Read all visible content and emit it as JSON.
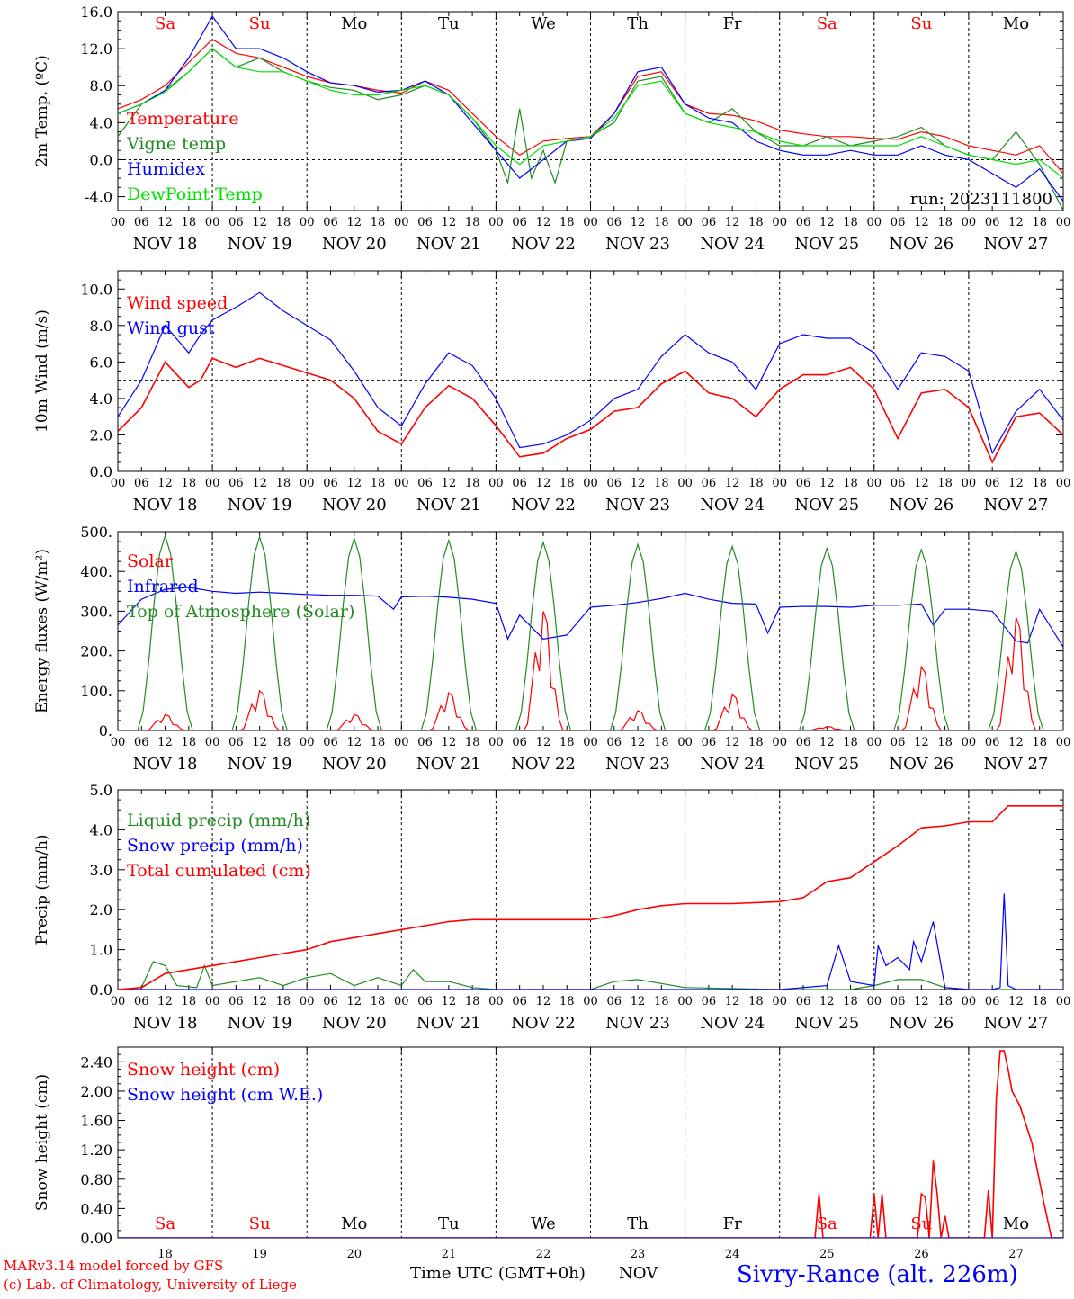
{
  "footer": {
    "model": "MARv3.14 model forced by GFS",
    "copyright": "(c) Lab. of Climatology, University of Liege",
    "time_label": "Time UTC (GMT+0h)",
    "month_label": "NOV",
    "station": "Sivry-Rance (alt. 226m)"
  },
  "colors": {
    "red": "#ff0000",
    "green": "#228b22",
    "blue": "#0000ff",
    "light_green": "#00e000",
    "black": "#000000",
    "gray": "#555555"
  },
  "days": {
    "names": [
      "Sa",
      "Su",
      "Mo",
      "Tu",
      "We",
      "Th",
      "Fr",
      "Sa",
      "Su",
      "Mo"
    ],
    "weekend": [
      true,
      true,
      false,
      false,
      false,
      false,
      false,
      true,
      true,
      false
    ],
    "dates": [
      "NOV 18",
      "NOV 19",
      "NOV 20",
      "NOV 21",
      "NOV 22",
      "NOV 23",
      "NOV 24",
      "NOV 25",
      "NOV 26",
      "NOV 27"
    ],
    "numbers": [
      "18",
      "19",
      "20",
      "21",
      "22",
      "23",
      "24",
      "25",
      "26",
      "27"
    ],
    "hours": [
      "00",
      "06",
      "12",
      "18"
    ]
  },
  "chart_data": [
    {
      "type": "line",
      "ylabel": "2m Temp. (ºC)",
      "ylim": [
        -5.5,
        16
      ],
      "yticks": [
        "-4.0",
        "0.0",
        "4.0",
        "8.0",
        "12.0",
        "16.0"
      ],
      "ytick_values": [
        -4,
        0,
        4,
        8,
        12,
        16
      ],
      "ref_line": 0,
      "annotation": "run: 2023111800",
      "x_unit": "hours since 00 UTC NOV 18",
      "series": [
        {
          "name": "Temperature",
          "color": "#ff0000",
          "x": [
            0,
            6,
            12,
            18,
            24,
            30,
            36,
            42,
            48,
            54,
            60,
            66,
            72,
            78,
            84,
            90,
            96,
            102,
            108,
            114,
            120,
            126,
            132,
            138,
            144,
            150,
            156,
            162,
            168,
            174,
            180,
            186,
            192,
            198,
            204,
            210,
            216,
            222,
            228,
            234,
            240
          ],
          "y": [
            5.5,
            6.5,
            8,
            10.5,
            13,
            11.5,
            11,
            10,
            9,
            8.3,
            8,
            7.5,
            7.2,
            8.5,
            7.5,
            5,
            2.5,
            0.5,
            2,
            2.3,
            2.5,
            5,
            9,
            9.5,
            6,
            5,
            4.8,
            4.2,
            3.2,
            2.8,
            2.5,
            2.5,
            2.3,
            2.2,
            3,
            2.5,
            1.5,
            1,
            0.5,
            1.5,
            -1.5
          ]
        },
        {
          "name": "Vigne temp",
          "color": "#228b22",
          "x": [
            0,
            6,
            12,
            18,
            24,
            30,
            36,
            42,
            48,
            54,
            60,
            66,
            72,
            78,
            84,
            90,
            96,
            99,
            102,
            105,
            108,
            111,
            114,
            120,
            126,
            132,
            138,
            144,
            150,
            156,
            162,
            168,
            174,
            180,
            186,
            192,
            198,
            204,
            210,
            216,
            222,
            228,
            234,
            240
          ],
          "y": [
            2.5,
            6,
            7.5,
            9.5,
            12,
            10,
            11,
            9.5,
            8.5,
            7.8,
            7.5,
            6.5,
            7,
            8,
            7,
            4.5,
            1,
            -2.5,
            5.5,
            -2,
            1,
            -2.5,
            2,
            2.5,
            4,
            8.5,
            9,
            5,
            4,
            5.5,
            3,
            1.5,
            1.5,
            2.5,
            1.5,
            2,
            2.5,
            3.5,
            1.5,
            0.5,
            0,
            3,
            -0.5,
            -5.5
          ]
        },
        {
          "name": "Humidex",
          "color": "#0000ff",
          "x": [
            0,
            6,
            12,
            18,
            24,
            30,
            36,
            42,
            48,
            54,
            60,
            66,
            72,
            78,
            84,
            90,
            96,
            102,
            108,
            114,
            120,
            126,
            132,
            138,
            144,
            150,
            156,
            162,
            168,
            174,
            180,
            186,
            192,
            198,
            204,
            210,
            216,
            222,
            228,
            234,
            240
          ],
          "y": [
            5,
            6,
            7.5,
            11,
            15.5,
            12,
            12,
            11,
            9.5,
            8.3,
            8,
            7.3,
            7.5,
            8.5,
            7,
            4,
            1,
            -2,
            0,
            2,
            2.3,
            5,
            9.5,
            10,
            6,
            4.5,
            4,
            2,
            1,
            0.5,
            0.5,
            1,
            0.5,
            0.5,
            1.5,
            0.5,
            0,
            -1.5,
            -3,
            -1,
            -4.5
          ]
        },
        {
          "name": "DewPoint Temp",
          "color": "#00e000",
          "x": [
            0,
            6,
            12,
            18,
            24,
            30,
            36,
            42,
            48,
            54,
            60,
            66,
            72,
            78,
            84,
            90,
            96,
            102,
            108,
            114,
            120,
            126,
            132,
            138,
            144,
            150,
            156,
            162,
            168,
            174,
            180,
            186,
            192,
            198,
            204,
            210,
            216,
            222,
            228,
            234,
            240
          ],
          "y": [
            5,
            6,
            7.3,
            9.5,
            12,
            10,
            9.5,
            9.5,
            8.5,
            7.5,
            7,
            7,
            7.5,
            8,
            7,
            4.5,
            1.5,
            -0.5,
            1.5,
            2,
            2.5,
            4.5,
            8,
            8.5,
            5,
            4,
            3.5,
            3,
            2,
            1.5,
            1.5,
            1.5,
            1.5,
            1.5,
            2.5,
            1.5,
            0.5,
            0,
            -0.5,
            0,
            -2
          ]
        }
      ]
    },
    {
      "type": "line",
      "ylabel": "10m Wind (m/s)",
      "ylim": [
        0,
        11
      ],
      "yticks": [
        "0.0",
        "2.0",
        "4.0",
        "6.0",
        "8.0",
        "10.0"
      ],
      "ytick_values": [
        0,
        2,
        4,
        6,
        8,
        10
      ],
      "ref_line": 5,
      "x_unit": "hours since 00 UTC NOV 18",
      "series": [
        {
          "name": "Wind speed",
          "color": "#ff0000",
          "x": [
            0,
            6,
            12,
            18,
            21,
            24,
            30,
            36,
            42,
            48,
            54,
            60,
            66,
            72,
            78,
            84,
            90,
            96,
            102,
            108,
            114,
            120,
            126,
            132,
            138,
            144,
            150,
            156,
            162,
            168,
            174,
            180,
            186,
            192,
            198,
            204,
            210,
            216,
            222,
            228,
            234,
            240
          ],
          "y": [
            2.2,
            3.5,
            6,
            4.6,
            5,
            6.2,
            5.7,
            6.2,
            5.8,
            5.4,
            5,
            4,
            2.2,
            1.5,
            3.5,
            4.7,
            4,
            2.5,
            0.8,
            1,
            1.8,
            2.3,
            3.3,
            3.5,
            4.8,
            5.5,
            4.3,
            4,
            3,
            4.5,
            5.3,
            5.3,
            5.7,
            4.5,
            1.8,
            4.3,
            4.5,
            3.5,
            0.5,
            3,
            3.2,
            2
          ]
        },
        {
          "name": "Wind gust",
          "color": "#0000ff",
          "x": [
            0,
            6,
            12,
            18,
            21,
            24,
            30,
            36,
            42,
            48,
            54,
            60,
            66,
            72,
            78,
            84,
            90,
            96,
            102,
            108,
            114,
            120,
            126,
            132,
            138,
            144,
            150,
            156,
            162,
            168,
            174,
            180,
            186,
            192,
            198,
            204,
            210,
            216,
            222,
            228,
            234,
            240
          ],
          "y": [
            3,
            5,
            8,
            6.5,
            7.5,
            8.3,
            9,
            9.8,
            8.8,
            8,
            7.2,
            5.5,
            3.5,
            2.5,
            4.8,
            6.5,
            5.8,
            4,
            1.3,
            1.5,
            2,
            2.8,
            4,
            4.5,
            6.3,
            7.5,
            6.5,
            6,
            4.5,
            7,
            7.5,
            7.3,
            7.3,
            6.5,
            4.5,
            6.5,
            6.3,
            5.5,
            1,
            3.3,
            4.5,
            2.8
          ]
        }
      ]
    },
    {
      "type": "line",
      "ylabel": "Energy fluxes (W/m²)",
      "ylim": [
        0,
        500
      ],
      "yticks": [
        "0.",
        "100.",
        "200.",
        "300.",
        "400.",
        "500."
      ],
      "ytick_values": [
        0,
        100,
        200,
        300,
        400,
        500
      ],
      "x_unit": "hours since 00 UTC NOV 18",
      "series": [
        {
          "name": "Solar",
          "peaks": [
            40,
            100,
            40,
            95,
            300,
            50,
            90,
            10,
            160,
            285
          ],
          "color": "#ff0000"
        },
        {
          "name": "Infrared",
          "color": "#0000ff",
          "x": [
            0,
            6,
            12,
            18,
            24,
            30,
            36,
            42,
            48,
            54,
            60,
            66,
            70,
            72,
            78,
            84,
            90,
            96,
            99,
            102,
            108,
            114,
            120,
            126,
            132,
            138,
            144,
            150,
            156,
            162,
            165,
            168,
            174,
            180,
            186,
            192,
            198,
            204,
            207,
            210,
            216,
            222,
            228,
            231,
            234,
            240
          ],
          "y": [
            265,
            330,
            355,
            360,
            350,
            345,
            348,
            345,
            342,
            340,
            340,
            338,
            305,
            336,
            338,
            335,
            330,
            320,
            230,
            290,
            230,
            240,
            310,
            315,
            322,
            332,
            345,
            330,
            320,
            318,
            245,
            310,
            312,
            312,
            310,
            315,
            315,
            318,
            265,
            305,
            305,
            300,
            225,
            220,
            305,
            210
          ]
        },
        {
          "name": "Top of Atmosphere (Solar)",
          "peaks": [
            490,
            487,
            483,
            478,
            473,
            468,
            463,
            458,
            455,
            450
          ],
          "color": "#228b22"
        }
      ]
    },
    {
      "type": "line",
      "ylabel": "Precip (mm/h)",
      "ylim": [
        0,
        5
      ],
      "yticks": [
        "0.0",
        "1.0",
        "2.0",
        "3.0",
        "4.0",
        "5.0"
      ],
      "ytick_values": [
        0,
        1,
        2,
        3,
        4,
        5
      ],
      "x_unit": "hours since 00 UTC NOV 18",
      "series": [
        {
          "name": "Liquid precip (mm/h)",
          "color": "#228b22",
          "x": [
            0,
            6,
            9,
            12,
            15,
            20,
            22,
            24,
            30,
            36,
            42,
            48,
            54,
            60,
            66,
            72,
            75,
            78,
            84,
            90,
            96,
            120,
            126,
            132,
            144,
            168,
            186,
            192,
            198,
            204,
            210,
            216,
            240
          ],
          "y": [
            0,
            0.05,
            0.7,
            0.6,
            0.1,
            0.05,
            0.6,
            0.1,
            0.2,
            0.3,
            0.1,
            0.3,
            0.4,
            0.1,
            0.3,
            0.1,
            0.5,
            0.2,
            0.2,
            0.05,
            0,
            0,
            0.2,
            0.25,
            0.05,
            0,
            0,
            0.1,
            0.25,
            0.25,
            0.05,
            0,
            0
          ]
        },
        {
          "name": "Snow precip (mm/h)",
          "color": "#0000ff",
          "x": [
            0,
            168,
            180,
            183,
            186,
            192,
            193,
            195,
            198,
            201,
            202,
            204,
            207,
            210,
            216,
            222,
            224,
            225,
            226,
            228,
            240
          ],
          "y": [
            0,
            0,
            0.1,
            1.1,
            0.2,
            0.1,
            1.1,
            0.6,
            0.8,
            0.5,
            1.2,
            0.7,
            1.7,
            0.05,
            0,
            0,
            0.05,
            2.4,
            0.1,
            0,
            0
          ]
        },
        {
          "name": "Total cumulated (cm)",
          "color": "#ff0000",
          "x": [
            0,
            6,
            12,
            18,
            24,
            30,
            36,
            42,
            48,
            54,
            60,
            66,
            72,
            78,
            84,
            90,
            96,
            108,
            120,
            126,
            132,
            138,
            144,
            156,
            168,
            174,
            180,
            186,
            192,
            198,
            204,
            210,
            216,
            222,
            226,
            228,
            240
          ],
          "y": [
            0,
            0.05,
            0.4,
            0.5,
            0.6,
            0.7,
            0.8,
            0.9,
            1.0,
            1.2,
            1.3,
            1.4,
            1.5,
            1.6,
            1.7,
            1.75,
            1.75,
            1.75,
            1.75,
            1.85,
            2.0,
            2.1,
            2.15,
            2.15,
            2.2,
            2.3,
            2.7,
            2.8,
            3.2,
            3.6,
            4.05,
            4.1,
            4.2,
            4.2,
            4.6,
            4.6,
            4.6
          ]
        }
      ]
    },
    {
      "type": "line",
      "ylabel": "Snow height (cm)",
      "ylim": [
        0,
        2.6
      ],
      "yticks": [
        "0.00",
        "0.40",
        "0.80",
        "1.20",
        "1.60",
        "2.00",
        "2.40"
      ],
      "ytick_values": [
        0,
        0.4,
        0.8,
        1.2,
        1.6,
        2.0,
        2.4
      ],
      "x_unit": "hours since 00 UTC NOV 18",
      "series": [
        {
          "name": "Snow height (cm)",
          "color": "#ff0000",
          "x": [
            0,
            177,
            178,
            179,
            191,
            192,
            193,
            194,
            195,
            196,
            203,
            204,
            205,
            206,
            207,
            208,
            209,
            210,
            211,
            220,
            221,
            222,
            223,
            224,
            225,
            226,
            227,
            229,
            232,
            235,
            237,
            240
          ],
          "y": [
            0,
            0,
            0.6,
            0,
            0,
            0.6,
            0,
            0.6,
            0,
            0,
            0,
            0.6,
            0.55,
            0,
            1.05,
            0.6,
            0,
            0.3,
            0,
            0,
            0.65,
            0,
            1.9,
            2.55,
            2.55,
            2.3,
            2.0,
            1.8,
            1.3,
            0.5,
            0,
            0
          ]
        },
        {
          "name": "Snow height (cm W.E.)",
          "color": "#0000ff",
          "x": [
            0,
            240
          ],
          "y": [
            0,
            0
          ]
        }
      ]
    }
  ]
}
